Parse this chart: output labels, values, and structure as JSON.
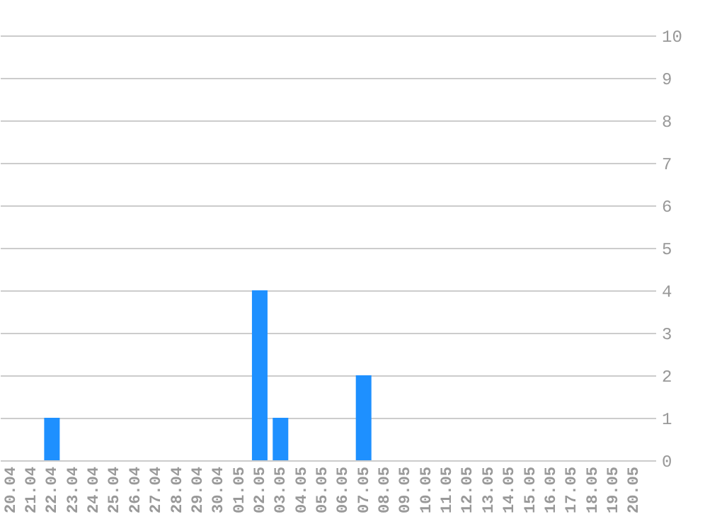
{
  "chart_data": {
    "type": "bar",
    "categories": [
      "20.04",
      "21.04",
      "22.04",
      "23.04",
      "24.04",
      "25.04",
      "26.04",
      "27.04",
      "28.04",
      "29.04",
      "30.04",
      "01.05",
      "02.05",
      "03.05",
      "04.05",
      "05.05",
      "06.05",
      "07.05",
      "08.05",
      "09.05",
      "10.05",
      "11.05",
      "12.05",
      "13.05",
      "14.05",
      "15.05",
      "16.05",
      "17.05",
      "18.05",
      "19.05",
      "20.05"
    ],
    "values": [
      0,
      0,
      1,
      0,
      0,
      0,
      0,
      0,
      0,
      0,
      0,
      0,
      4,
      1,
      0,
      0,
      0,
      2,
      0,
      0,
      0,
      0,
      0,
      0,
      0,
      0,
      0,
      0,
      0,
      0,
      0
    ],
    "color": "#1e90ff",
    "ylim": [
      0,
      10
    ],
    "yticks": [
      0,
      1,
      2,
      3,
      4,
      5,
      6,
      7,
      8,
      9,
      10
    ],
    "grid": "y"
  }
}
